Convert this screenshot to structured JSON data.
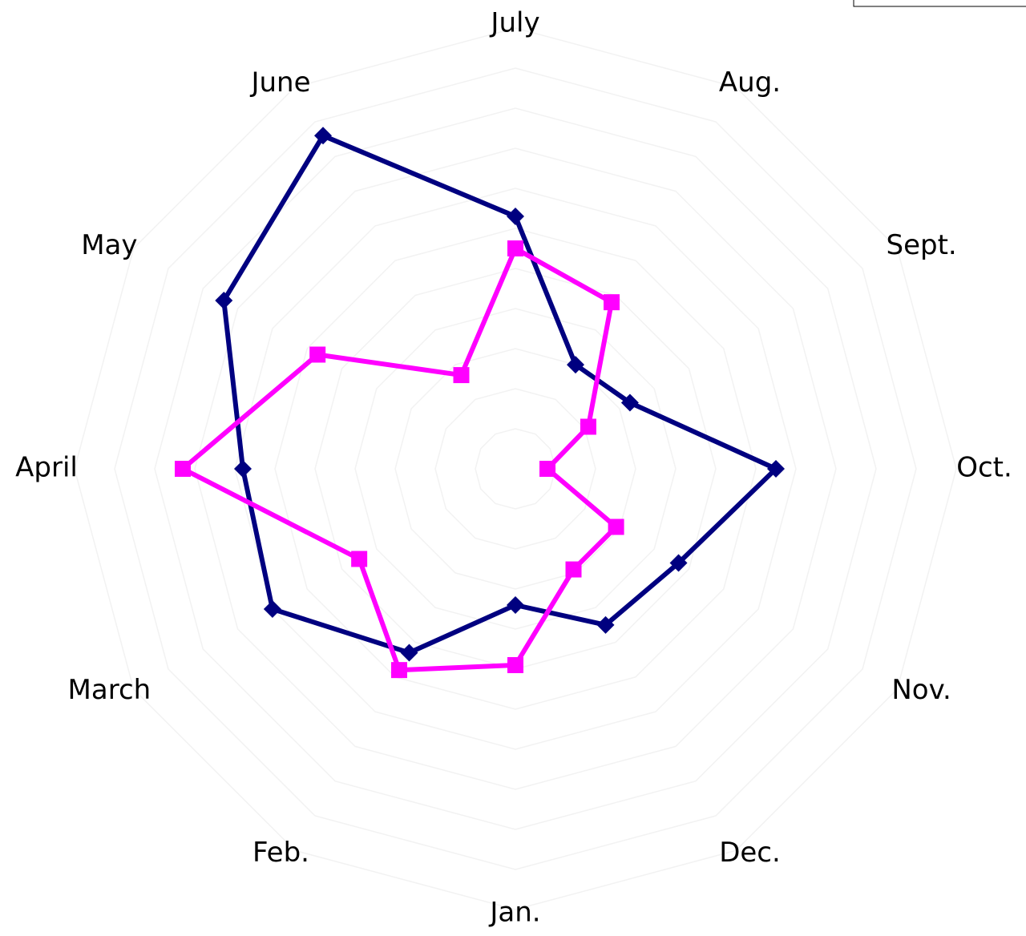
{
  "chart_data": {
    "type": "radar",
    "categories": [
      "Jan.",
      "Feb.",
      "March",
      "April",
      "May",
      "June",
      "July",
      "Aug.",
      "Sept.",
      "Oct.",
      "Nov.",
      "Dec."
    ],
    "series": [
      {
        "color": "#000080",
        "marker": "diamond",
        "values": [
          34,
          53,
          70,
          68,
          84,
          96,
          63,
          30,
          33,
          65,
          47,
          45
        ]
      },
      {
        "color": "#ff00ff",
        "marker": "square",
        "values": [
          49,
          58,
          45,
          83,
          57,
          27,
          55,
          48,
          21,
          8,
          29,
          29
        ]
      }
    ],
    "ylim": [
      0,
      100
    ],
    "yticks": [
      10,
      20,
      30,
      40,
      50,
      60,
      70,
      80,
      90,
      100,
      110
    ],
    "grid": true
  }
}
